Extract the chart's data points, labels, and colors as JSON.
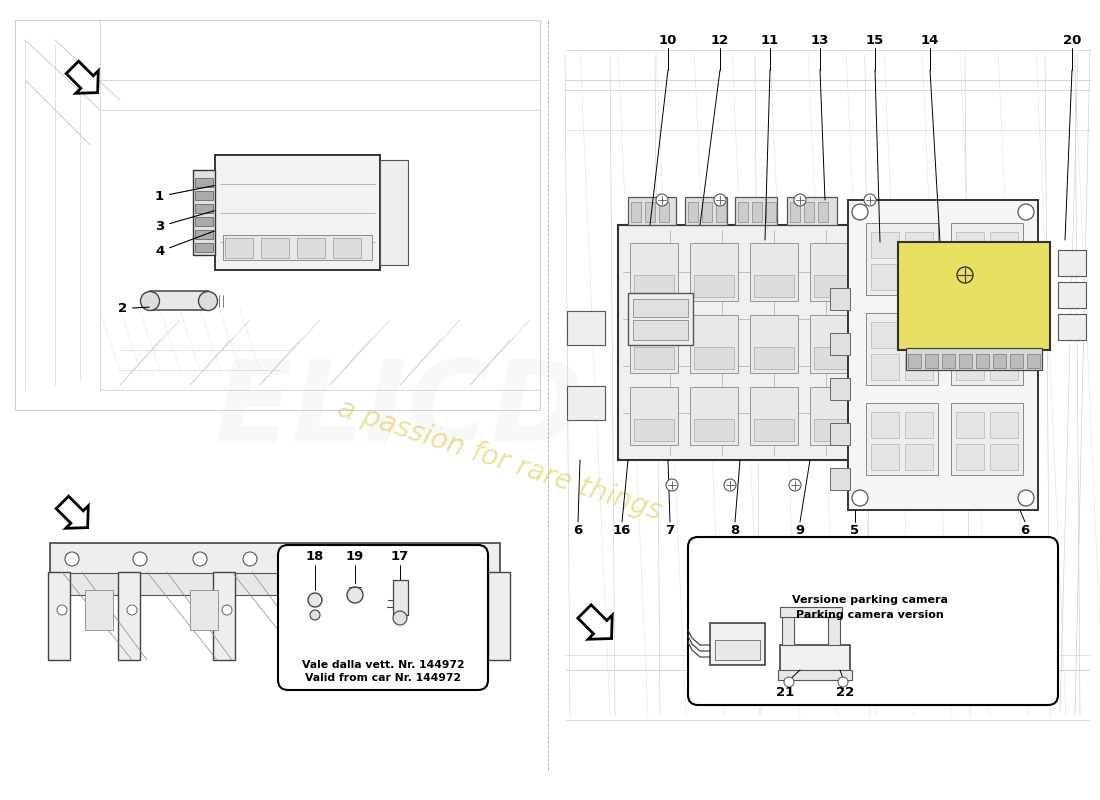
{
  "bg_color": "#ffffff",
  "watermark_text": "a passion for rare things",
  "watermark_brand": "ELICD",
  "inset_left_text1": "Vale dalla vett. Nr. 144972",
  "inset_left_text2": "Valid from car Nr. 144972",
  "inset_right_text1": "Versione parking camera",
  "inset_right_text2": "Parking camera version",
  "highlight_yellow": "#e8e060",
  "part_label_fs": 9.5,
  "body_line_color": "#555555",
  "body_line_lw": 0.8,
  "structure_color": "#333333",
  "structure_lw": 1.1
}
